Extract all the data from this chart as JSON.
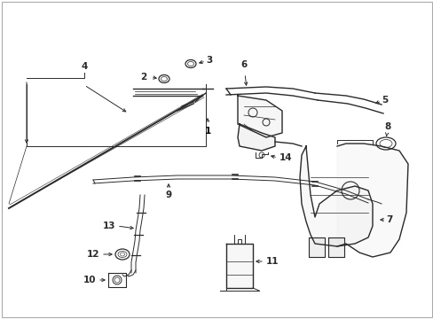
{
  "background_color": "#ffffff",
  "line_color": "#2a2a2a",
  "label_color": "#000000",
  "figsize": [
    4.89,
    3.6
  ],
  "dpi": 100,
  "border_color": "#aaaaaa"
}
